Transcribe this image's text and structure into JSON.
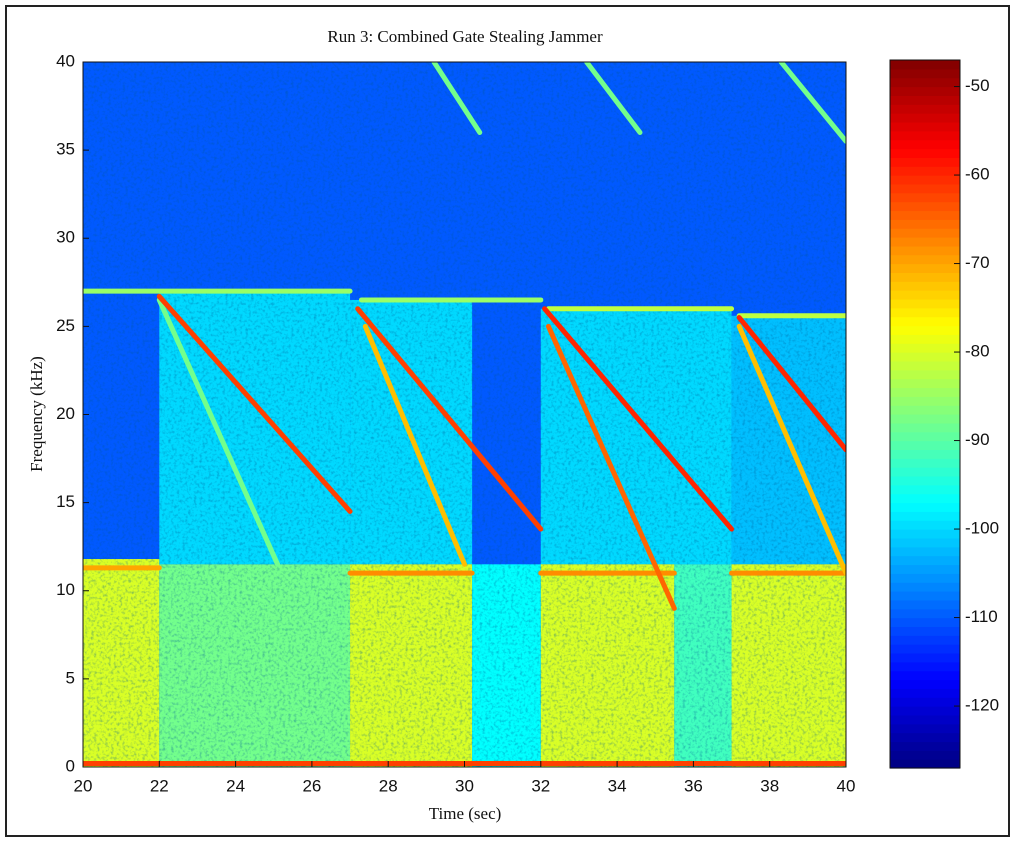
{
  "chart_data": {
    "type": "spectrogram",
    "title": "Run 3: Combined Gate Stealing Jammer",
    "x_label": "Time (sec)",
    "y_label": "Frequency (kHz)",
    "xlim": [
      20,
      40
    ],
    "ylim": [
      0,
      40
    ],
    "xticks": [
      20,
      22,
      24,
      26,
      28,
      30,
      32,
      34,
      36,
      38,
      40
    ],
    "yticks": [
      0,
      5,
      10,
      15,
      20,
      25,
      30,
      35,
      40
    ],
    "clim": [
      -127,
      -47
    ],
    "cticks": [
      -50,
      -60,
      -70,
      -80,
      -90,
      -100,
      -110,
      -120
    ],
    "background_level": -110,
    "regions": [
      {
        "t": [
          22,
          27
        ],
        "f": [
          11.5,
          27
        ],
        "level": -100
      },
      {
        "t": [
          27,
          30.2
        ],
        "f": [
          11.5,
          26.5
        ],
        "level": -100
      },
      {
        "t": [
          32,
          37
        ],
        "f": [
          11.5,
          26
        ],
        "level": -100
      },
      {
        "t": [
          37,
          40
        ],
        "f": [
          11.5,
          25.6
        ],
        "level": -102
      },
      {
        "t": [
          20,
          22
        ],
        "f": [
          0,
          11.8
        ],
        "level": -80
      },
      {
        "t": [
          22,
          27
        ],
        "f": [
          0,
          11.5
        ],
        "level": -88
      },
      {
        "t": [
          27,
          30.2
        ],
        "f": [
          0,
          11.5
        ],
        "level": -80
      },
      {
        "t": [
          30.2,
          32
        ],
        "f": [
          0,
          11.5
        ],
        "level": -97
      },
      {
        "t": [
          32,
          35.5
        ],
        "f": [
          0,
          11.5
        ],
        "level": -80
      },
      {
        "t": [
          35.5,
          37
        ],
        "f": [
          0,
          11.5
        ],
        "level": -92
      },
      {
        "t": [
          37,
          40
        ],
        "f": [
          0,
          11.5
        ],
        "level": -80
      }
    ],
    "lines": [
      {
        "t": [
          20,
          27
        ],
        "f": [
          27,
          27
        ],
        "level": -85
      },
      {
        "t": [
          27.3,
          32
        ],
        "f": [
          26.5,
          26.5
        ],
        "level": -85
      },
      {
        "t": [
          32.2,
          37
        ],
        "f": [
          26,
          26
        ],
        "level": -82
      },
      {
        "t": [
          37.2,
          40
        ],
        "f": [
          25.6,
          25.6
        ],
        "level": -82
      },
      {
        "t": [
          20,
          22
        ],
        "f": [
          11.3,
          11.3
        ],
        "level": -70
      },
      {
        "t": [
          27,
          30.2
        ],
        "f": [
          11,
          11
        ],
        "level": -68
      },
      {
        "t": [
          32,
          35.5
        ],
        "f": [
          11,
          11
        ],
        "level": -68
      },
      {
        "t": [
          37,
          40
        ],
        "f": [
          11,
          11
        ],
        "level": -68
      },
      {
        "t": [
          20,
          40
        ],
        "f": [
          0.2,
          0.2
        ],
        "level": -62
      },
      {
        "t": [
          22,
          25.1
        ],
        "f": [
          26.5,
          11.5
        ],
        "level": -88
      },
      {
        "t": [
          27.4,
          30
        ],
        "f": [
          25,
          11.5
        ],
        "level": -72
      },
      {
        "t": [
          32.2,
          35.5
        ],
        "f": [
          25,
          9
        ],
        "level": -65
      },
      {
        "t": [
          37.2,
          40
        ],
        "f": [
          25,
          11
        ],
        "level": -72
      },
      {
        "t": [
          29.2,
          30.4
        ],
        "f": [
          40,
          36
        ],
        "level": -88
      },
      {
        "t": [
          33.2,
          34.6
        ],
        "f": [
          40,
          36
        ],
        "level": -88
      },
      {
        "t": [
          38.3,
          40
        ],
        "f": [
          40,
          35.5
        ],
        "level": -88
      },
      {
        "t": [
          22,
          27
        ],
        "f": [
          26.7,
          14.5
        ],
        "level": -62
      },
      {
        "t": [
          27.2,
          32
        ],
        "f": [
          26,
          13.5
        ],
        "level": -62
      },
      {
        "t": [
          32.1,
          37
        ],
        "f": [
          26,
          13.5
        ],
        "level": -60
      },
      {
        "t": [
          37.2,
          40
        ],
        "f": [
          25.5,
          18
        ],
        "level": -60
      }
    ]
  }
}
